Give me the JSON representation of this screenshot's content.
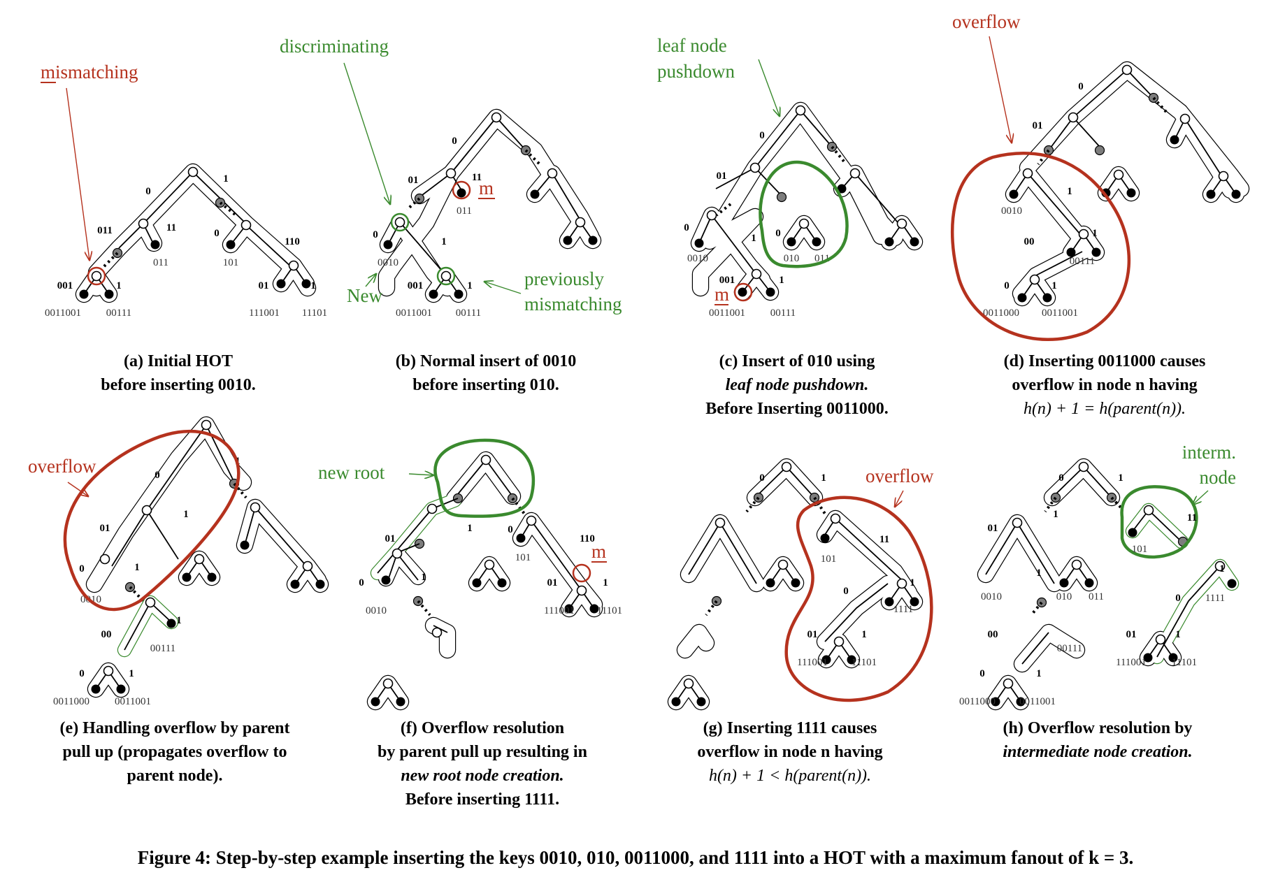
{
  "colors": {
    "red": "#b5321e",
    "green": "#3a8a2e",
    "gray": "#7d7d7d",
    "black": "#000000"
  },
  "panels": [
    {
      "id": "a",
      "caption_line1": "(a) Initial HOT",
      "caption_line2": "before inserting 0010.",
      "annotations": [
        "mismatching"
      ],
      "edge_labels": [
        "0",
        "1",
        "011",
        "11",
        "001",
        "1",
        "0",
        "110",
        "01",
        "1"
      ],
      "leaf_keys": [
        "0011001",
        "00111",
        "011",
        "101",
        "111001",
        "11101"
      ]
    },
    {
      "id": "b",
      "caption_line1": "(b) Normal insert of 0010",
      "caption_line2": "before inserting 010.",
      "annotations": [
        "discriminating",
        "New",
        "previously",
        "mismatching",
        "m"
      ],
      "edge_labels": [
        "0",
        "01",
        "11",
        "0",
        "1",
        "001",
        "1"
      ],
      "leaf_keys": [
        "0010",
        "011",
        "0011001",
        "00111"
      ]
    },
    {
      "id": "c",
      "caption_line1": "(c) Insert of 010 using",
      "caption_line2": "leaf node pushdown.",
      "caption_line3": "Before Inserting 0011000.",
      "annotations": [
        "leaf node",
        "pushdown",
        "m"
      ],
      "edge_labels": [
        "0",
        "01",
        "0",
        "1",
        "0",
        "001",
        "1"
      ],
      "leaf_keys": [
        "0010",
        "010",
        "011",
        "0011001",
        "00111"
      ]
    },
    {
      "id": "d",
      "caption_line1": "(d) Inserting 0011000 causes",
      "caption_line2": "overflow in node n having",
      "caption_line3": "h(n) + 1 = h(parent(n)).",
      "annotations": [
        "overflow"
      ],
      "edge_labels": [
        "0",
        "01",
        "1",
        "00",
        "1",
        "0",
        "1"
      ],
      "leaf_keys": [
        "0010",
        "00111",
        "0011000",
        "0011001"
      ]
    },
    {
      "id": "e",
      "caption_line1": "(e) Handling overflow by parent",
      "caption_line2": "pull up (propagates overflow to",
      "caption_line3": "parent node).",
      "annotations": [
        "overflow"
      ],
      "edge_labels": [
        "0",
        "1",
        "01",
        "1",
        "0",
        "1",
        "00",
        "1",
        "0",
        "1"
      ],
      "leaf_keys": [
        "0010",
        "00111",
        "0011000",
        "0011001"
      ]
    },
    {
      "id": "f",
      "caption_line1": "(f) Overflow resolution",
      "caption_line2": "by parent pull up resulting in",
      "caption_line3": "new root node creation.",
      "caption_line4": "Before inserting 1111.",
      "annotations": [
        "new root",
        "m"
      ],
      "edge_labels": [
        "01",
        "1",
        "0",
        "1",
        "0",
        "110",
        "01",
        "1"
      ],
      "leaf_keys": [
        "0010",
        "101",
        "111001",
        "11101"
      ]
    },
    {
      "id": "g",
      "caption_line1": "(g) Inserting 1111 causes",
      "caption_line2": "overflow in node n having",
      "caption_line3": "h(n) + 1 < h(parent(n)).",
      "annotations": [
        "overflow"
      ],
      "edge_labels": [
        "0",
        "1",
        "11",
        "1",
        "0",
        "01",
        "1"
      ],
      "leaf_keys": [
        "101",
        "1111",
        "111001",
        "11101"
      ]
    },
    {
      "id": "h",
      "caption_line1": "(h) Overflow resolution by",
      "caption_line2": "intermediate node creation.",
      "annotations": [
        "interm.",
        "node"
      ],
      "edge_labels": [
        "0",
        "1",
        "01",
        "1",
        "11",
        "1",
        "0",
        "1",
        "00",
        "01",
        "1",
        "0",
        "1"
      ],
      "leaf_keys": [
        "0010",
        "010",
        "011",
        "101",
        "1111",
        "111001",
        "11101",
        "0011000",
        "0011001",
        "00111"
      ]
    }
  ],
  "figure_caption": "Figure 4: Step-by-step example inserting the keys 0010, 010, 0011000, and 1111 into a HOT with a maximum fanout of k = 3."
}
